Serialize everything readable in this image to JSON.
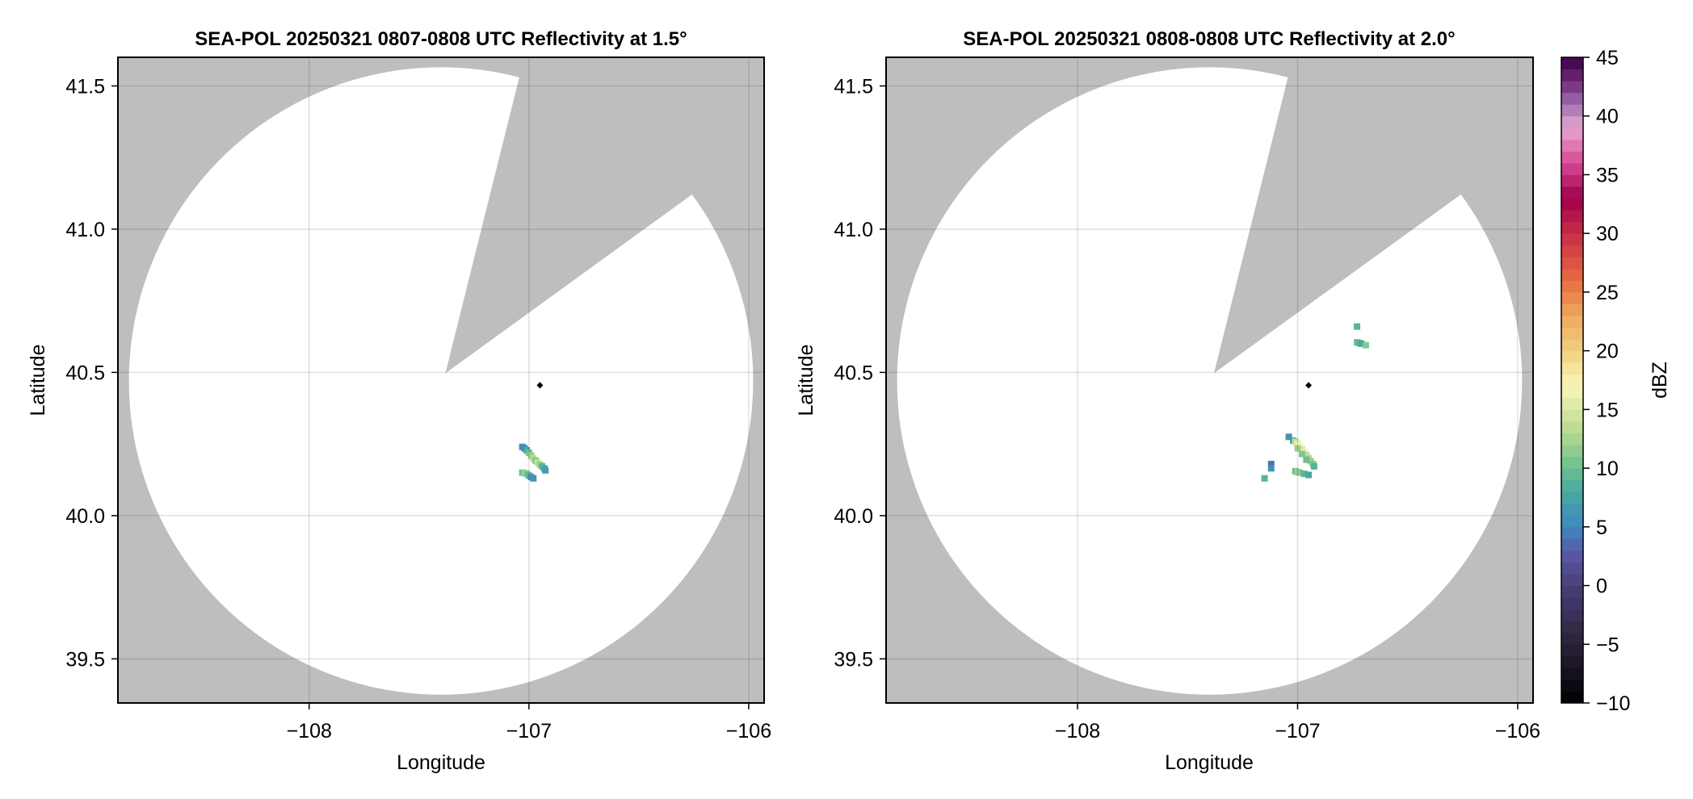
{
  "chart_data": [
    {
      "type": "heatmap",
      "title": "SEA-POL 20250321 0807-0808 UTC Reflectivity at 1.5°",
      "xlabel": "Longitude",
      "ylabel": "Latitude",
      "xlim": [
        -108.87,
        -105.93
      ],
      "ylim": [
        39.346,
        41.6
      ],
      "xticks": [
        -108,
        -107,
        -106
      ],
      "xtick_labels": [
        "−108",
        "−107",
        "−106"
      ],
      "yticks": [
        39.5,
        40.0,
        40.5,
        41.0,
        41.5
      ],
      "ytick_labels": [
        "39.5",
        "40.0",
        "40.5",
        "41.0",
        "41.5"
      ],
      "grid": true,
      "no_data_color": "#bebebe",
      "coverage": {
        "center": [
          -107.4,
          40.47
        ],
        "radius_lon": 1.42,
        "radius_lat": 1.095,
        "blocked_sector": {
          "apex": [
            -107.38,
            40.497
          ],
          "ray1_end": [
            -107.044,
            41.53
          ],
          "ray2_end": [
            -106.26,
            41.12
          ]
        }
      },
      "marker": {
        "lon": -106.95,
        "lat": 40.455,
        "color": "#000000"
      },
      "echoes": [
        [
          -107.03,
          40.24,
          6
        ],
        [
          -107.02,
          40.235,
          5
        ],
        [
          -107.01,
          40.228,
          8
        ],
        [
          -107.0,
          40.22,
          10
        ],
        [
          -106.99,
          40.21,
          12
        ],
        [
          -106.98,
          40.2,
          13
        ],
        [
          -106.97,
          40.192,
          11
        ],
        [
          -106.96,
          40.185,
          14
        ],
        [
          -106.95,
          40.178,
          12
        ],
        [
          -106.94,
          40.172,
          9
        ],
        [
          -106.93,
          40.165,
          8
        ],
        [
          -106.925,
          40.158,
          7
        ],
        [
          -107.03,
          40.15,
          10
        ],
        [
          -107.02,
          40.148,
          12
        ],
        [
          -107.01,
          40.146,
          11
        ],
        [
          -107.0,
          40.14,
          9
        ],
        [
          -106.99,
          40.135,
          7
        ],
        [
          -106.98,
          40.13,
          6
        ]
      ]
    },
    {
      "type": "heatmap",
      "title": "SEA-POL 20250321 0808-0808 UTC Reflectivity at 2.0°",
      "xlabel": "Longitude",
      "ylabel": "Latitude",
      "xlim": [
        -108.87,
        -105.93
      ],
      "ylim": [
        39.346,
        41.6
      ],
      "xticks": [
        -108,
        -107,
        -106
      ],
      "xtick_labels": [
        "−108",
        "−107",
        "−106"
      ],
      "yticks": [
        39.5,
        40.0,
        40.5,
        41.0,
        41.5
      ],
      "ytick_labels": [
        "39.5",
        "40.0",
        "40.5",
        "41.0",
        "41.5"
      ],
      "grid": true,
      "no_data_color": "#bebebe",
      "coverage": {
        "center": [
          -107.4,
          40.47
        ],
        "radius_lon": 1.42,
        "radius_lat": 1.095,
        "blocked_sector": {
          "apex": [
            -107.38,
            40.497
          ],
          "ray1_end": [
            -107.044,
            41.53
          ],
          "ray2_end": [
            -106.26,
            41.12
          ]
        }
      },
      "marker": {
        "lon": -106.95,
        "lat": 40.455,
        "color": "#000000"
      },
      "echoes": [
        [
          -107.02,
          40.262,
          8
        ],
        [
          -107.01,
          40.258,
          14
        ],
        [
          -107.0,
          40.25,
          16
        ],
        [
          -106.99,
          40.242,
          17
        ],
        [
          -106.98,
          40.232,
          15
        ],
        [
          -106.97,
          40.222,
          16
        ],
        [
          -106.96,
          40.212,
          14
        ],
        [
          -106.95,
          40.2,
          13
        ],
        [
          -106.94,
          40.19,
          12
        ],
        [
          -106.93,
          40.18,
          11
        ],
        [
          -106.925,
          40.172,
          9
        ],
        [
          -107.0,
          40.235,
          12
        ],
        [
          -106.98,
          40.215,
          11
        ],
        [
          -106.96,
          40.195,
          10
        ],
        [
          -107.01,
          40.155,
          10
        ],
        [
          -107.0,
          40.152,
          12
        ],
        [
          -106.99,
          40.15,
          11
        ],
        [
          -106.97,
          40.146,
          9
        ],
        [
          -106.95,
          40.142,
          8
        ],
        [
          -107.12,
          40.18,
          4
        ],
        [
          -107.12,
          40.165,
          6
        ],
        [
          -107.15,
          40.13,
          9
        ],
        [
          -107.04,
          40.275,
          6
        ],
        [
          -106.73,
          40.605,
          10
        ],
        [
          -106.72,
          40.603,
          9
        ],
        [
          -106.71,
          40.6,
          8
        ],
        [
          -106.69,
          40.595,
          11
        ],
        [
          -106.73,
          40.66,
          9
        ]
      ]
    }
  ],
  "colorbar": {
    "label": "dBZ",
    "range": [
      -10,
      45
    ],
    "ticks": [
      -10,
      -5,
      0,
      5,
      10,
      15,
      20,
      25,
      30,
      35,
      40,
      45
    ],
    "tick_labels": [
      "−10",
      "−5",
      "0",
      "5",
      "10",
      "15",
      "20",
      "25",
      "30",
      "35",
      "40",
      "45"
    ],
    "colormap_stops": [
      [
        -10,
        "#000000"
      ],
      [
        -5,
        "#2a2238"
      ],
      [
        0,
        "#4a3f78"
      ],
      [
        3,
        "#5a5aaa"
      ],
      [
        5,
        "#3f88c0"
      ],
      [
        8,
        "#4aa8a0"
      ],
      [
        10,
        "#6abf90"
      ],
      [
        13,
        "#b5d890"
      ],
      [
        17,
        "#f8f8b8"
      ],
      [
        20,
        "#f2d080"
      ],
      [
        23,
        "#eea860"
      ],
      [
        26,
        "#e86c40"
      ],
      [
        30,
        "#c82c48"
      ],
      [
        33,
        "#a0004a"
      ],
      [
        36,
        "#d84898"
      ],
      [
        39,
        "#e8a8d0"
      ],
      [
        41,
        "#a070b0"
      ],
      [
        43,
        "#702878"
      ],
      [
        45,
        "#3a0048"
      ]
    ]
  }
}
